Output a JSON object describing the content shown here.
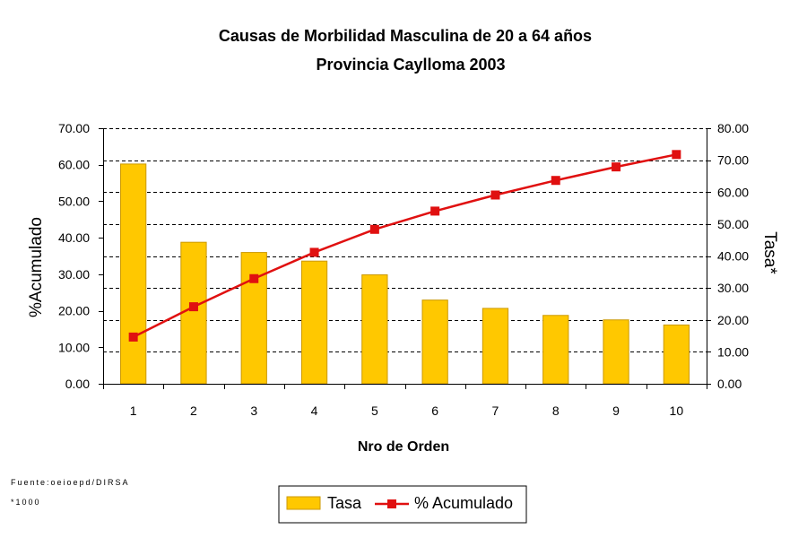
{
  "chart_data": {
    "type": "bar",
    "title": "Causas de Morbilidad Masculina de 20 a 64 años",
    "subtitle": "Provincia Caylloma 2003",
    "xlabel": "Nro de Orden",
    "ylabel_left": "%Acumulado",
    "ylabel_right": "Tasa*",
    "categories": [
      "1",
      "2",
      "3",
      "4",
      "5",
      "6",
      "7",
      "8",
      "9",
      "10"
    ],
    "left_axis": {
      "min": 0,
      "max": 70,
      "step": 10,
      "ticks": [
        "0.00",
        "10.00",
        "20.00",
        "30.00",
        "40.00",
        "50.00",
        "60.00",
        "70.00"
      ]
    },
    "right_axis": {
      "min": 0,
      "max": 80,
      "step": 10,
      "ticks": [
        "0.00",
        "10.00",
        "20.00",
        "30.00",
        "40.00",
        "50.00",
        "60.00",
        "70.00",
        "80.00"
      ]
    },
    "grid": "horizontal dashed",
    "legend_position": "bottom",
    "series": [
      {
        "name": "Tasa",
        "type": "bar",
        "axis": "right",
        "color": "#ffc800",
        "values": [
          68.8,
          44.3,
          41.1,
          38.4,
          34.1,
          26.2,
          23.6,
          21.4,
          20.0,
          18.4
        ]
      },
      {
        "name": "% Acumulado",
        "type": "line",
        "axis": "left",
        "color": "#e01010",
        "values": [
          12.8,
          21.1,
          28.8,
          36.0,
          42.3,
          47.3,
          51.7,
          55.7,
          59.4,
          62.8
        ]
      }
    ]
  },
  "footnotes": {
    "source": "Fuente:oeioepd/DIRSA",
    "note": "*1000"
  }
}
